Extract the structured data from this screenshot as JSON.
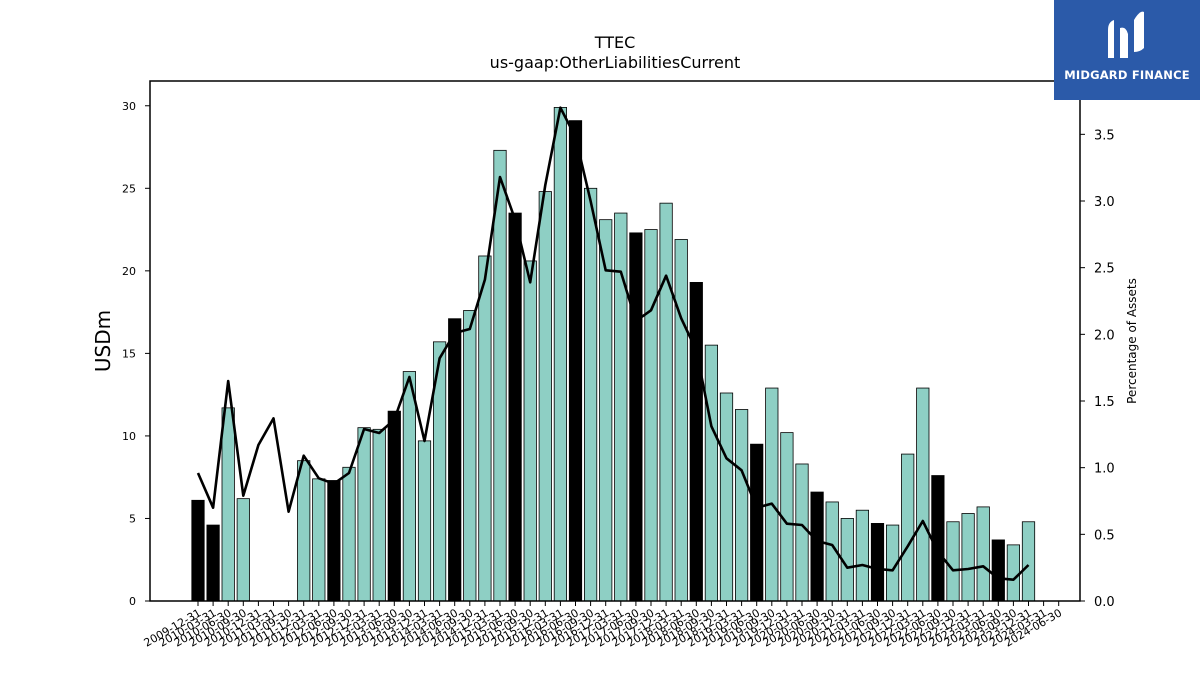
{
  "chart_data": {
    "type": "bar",
    "title": "TTEC",
    "subtitle": "us-gaap:OtherLiabilitiesCurrent",
    "ylabel": "USDm",
    "y2label": "Percentage of Assets",
    "ylim": [
      0,
      31.5
    ],
    "y2lim": [
      0,
      3.9
    ],
    "yticks": [
      0,
      5,
      10,
      15,
      20,
      25,
      30
    ],
    "y2ticks": [
      "0.0",
      "0.5",
      "1.0",
      "1.5",
      "2.0",
      "2.5",
      "3.0",
      "3.5"
    ],
    "grid": false,
    "categories": [
      "2009-12-31",
      "2010-03-31",
      "2010-06-30",
      "2010-09-30",
      "2010-12-31",
      "2011-03-31",
      "2011-09-30",
      "2011-12-31",
      "2012-03-31",
      "2012-06-30",
      "2012-09-30",
      "2012-12-31",
      "2013-03-31",
      "2013-06-30",
      "2013-09-30",
      "2013-12-31",
      "2014-03-31",
      "2014-06-30",
      "2014-09-30",
      "2014-12-31",
      "2015-03-31",
      "2015-06-30",
      "2015-09-30",
      "2015-12-31",
      "2016-03-31",
      "2016-06-30",
      "2016-09-30",
      "2016-12-31",
      "2017-03-31",
      "2017-06-30",
      "2017-09-30",
      "2017-12-31",
      "2018-03-31",
      "2018-06-30",
      "2018-09-30",
      "2018-12-31",
      "2019-03-31",
      "2019-06-30",
      "2019-09-30",
      "2019-12-31",
      "2020-03-31",
      "2020-06-30",
      "2020-09-30",
      "2020-12-31",
      "2021-03-31",
      "2021-06-30",
      "2021-09-30",
      "2021-12-31",
      "2022-03-31",
      "2022-06-30",
      "2022-09-30",
      "2022-12-31",
      "2023-03-31",
      "2023-06-30",
      "2023-09-30",
      "2023-12-31",
      "2024-03-31",
      "2024-06-30"
    ],
    "series": [
      {
        "role": "bars",
        "values": [
          6.1,
          4.6,
          11.7,
          6.2,
          0,
          0,
          0,
          8.5,
          7.4,
          7.3,
          8.1,
          10.5,
          10.4,
          11.5,
          13.9,
          9.7,
          15.7,
          17.1,
          17.6,
          20.9,
          27.3,
          23.5,
          20.6,
          24.8,
          29.9,
          29.1,
          25.0,
          23.1,
          23.5,
          22.3,
          22.5,
          24.1,
          21.9,
          19.3,
          15.5,
          12.6,
          11.6,
          9.5,
          12.9,
          10.2,
          8.3,
          6.6,
          6.0,
          5.0,
          5.5,
          4.7,
          4.6,
          8.9,
          12.9,
          7.6,
          4.8,
          5.3,
          5.7,
          3.7,
          3.4,
          4.8,
          0,
          0
        ],
        "highlight": [
          1,
          1,
          0,
          0,
          0,
          0,
          0,
          0,
          0,
          1,
          0,
          0,
          0,
          1,
          0,
          0,
          0,
          1,
          0,
          0,
          0,
          1,
          0,
          0,
          0,
          1,
          0,
          0,
          0,
          1,
          0,
          0,
          0,
          1,
          0,
          0,
          0,
          1,
          0,
          0,
          0,
          1,
          0,
          0,
          0,
          1,
          0,
          0,
          0,
          1,
          0,
          0,
          0,
          1,
          0,
          0,
          0,
          0
        ]
      },
      {
        "role": "line",
        "axis": "right",
        "values": [
          0.96,
          0.7,
          1.65,
          0.79,
          1.17,
          1.37,
          0.67,
          1.09,
          0.92,
          0.88,
          0.96,
          1.29,
          1.26,
          1.36,
          1.68,
          1.2,
          1.82,
          2.01,
          2.04,
          2.41,
          3.18,
          2.86,
          2.39,
          3.12,
          3.7,
          3.48,
          3.0,
          2.48,
          2.47,
          2.1,
          2.18,
          2.44,
          2.12,
          1.88,
          1.31,
          1.07,
          0.98,
          0.7,
          0.73,
          0.58,
          0.57,
          0.45,
          0.42,
          0.25,
          0.27,
          0.24,
          0.23,
          0.41,
          0.6,
          0.37,
          0.23,
          0.24,
          0.26,
          0.17,
          0.16,
          0.27,
          null,
          null
        ]
      }
    ],
    "colors": {
      "bar": "#8ecfc4",
      "bar_highlight": "#000000",
      "line": "#000000"
    }
  },
  "logo": {
    "text": "MIDGARD FINANCE",
    "color": "#2b5aa9"
  }
}
